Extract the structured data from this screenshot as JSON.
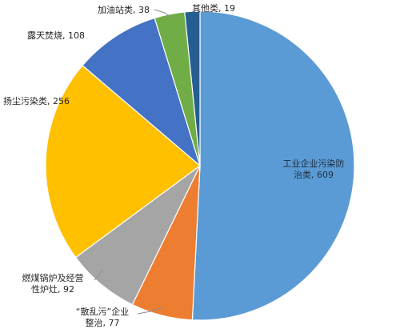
{
  "chart_data": {
    "type": "pie",
    "title": "",
    "slices": [
      {
        "label": "工业企业污染防治类",
        "value": 609,
        "color": "#5b9bd5"
      },
      {
        "label": "“散乱污”企业整治",
        "value": 77,
        "color": "#ed7d31"
      },
      {
        "label": "燃煤锅炉及经营性炉灶",
        "value": 92,
        "color": "#a5a5a5"
      },
      {
        "label": "扬尘污染类",
        "value": 256,
        "color": "#ffc000"
      },
      {
        "label": "露天焚烧",
        "value": 108,
        "color": "#4472c4"
      },
      {
        "label": "加油站类",
        "value": 38,
        "color": "#70ad47"
      },
      {
        "label": "其他类",
        "value": 19,
        "color": "#255e91"
      }
    ]
  },
  "labels": [
    {
      "lines": [
        "工业企业污染防",
        "治类, 609"
      ]
    },
    {
      "lines": [
        "“散乱污”企业",
        "整治, 77"
      ]
    },
    {
      "lines": [
        "燃煤锅炉及经营",
        "性炉灶, 92"
      ]
    },
    {
      "lines": [
        "扬尘污染类, 256"
      ]
    },
    {
      "lines": [
        "露天焚烧, 108"
      ]
    },
    {
      "lines": [
        "加油站类, 38"
      ]
    },
    {
      "lines": [
        "其他类, 19"
      ]
    }
  ]
}
